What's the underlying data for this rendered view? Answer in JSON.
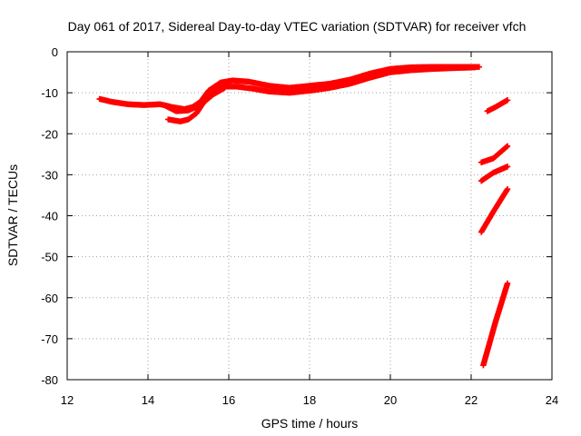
{
  "chart_data": {
    "type": "scatter",
    "title": "Day 061 of 2017, Sidereal Day-to-day VTEC variation (SDTVAR) for receiver vfch",
    "xlabel": "GPS time / hours",
    "ylabel": "SDTVAR / TECUs",
    "xlim": [
      12,
      24
    ],
    "ylim": [
      -80,
      0
    ],
    "x_ticks": [
      "12",
      "14",
      "16",
      "18",
      "20",
      "22",
      "24"
    ],
    "y_ticks": [
      "0",
      "-10",
      "-20",
      "-30",
      "-40",
      "-50",
      "-60",
      "-70",
      "-80"
    ],
    "grid": true,
    "legend": "none",
    "marker": "plus",
    "color": "#ff0000",
    "series": [
      {
        "points": [
          [
            12.8,
            -11.5
          ],
          [
            13.1,
            -12.2
          ],
          [
            13.5,
            -12.8
          ],
          [
            13.9,
            -13.0
          ],
          [
            14.3,
            -12.8
          ],
          [
            14.6,
            -13.5
          ],
          [
            14.9,
            -14.0
          ],
          [
            15.1,
            -13.5
          ],
          [
            15.3,
            -12.2
          ],
          [
            15.5,
            -9.5
          ],
          [
            15.8,
            -7.5
          ],
          [
            16.1,
            -7.0
          ],
          [
            16.5,
            -7.3
          ],
          [
            17.0,
            -8.3
          ],
          [
            17.5,
            -8.8
          ],
          [
            18.0,
            -8.3
          ],
          [
            18.5,
            -7.8
          ],
          [
            19.0,
            -6.8
          ],
          [
            19.5,
            -5.3
          ],
          [
            20.0,
            -4.2
          ],
          [
            20.5,
            -3.8
          ],
          [
            21.0,
            -3.7
          ],
          [
            21.5,
            -3.7
          ],
          [
            22.2,
            -3.7
          ]
        ]
      },
      {
        "points": [
          [
            14.5,
            -16.5
          ],
          [
            14.8,
            -17.0
          ],
          [
            15.0,
            -16.5
          ],
          [
            15.2,
            -15.0
          ],
          [
            15.4,
            -12.0
          ],
          [
            15.6,
            -9.5
          ],
          [
            15.9,
            -8.5
          ],
          [
            16.2,
            -8.5
          ],
          [
            16.6,
            -9.0
          ],
          [
            17.0,
            -9.7
          ],
          [
            17.5,
            -10.0
          ],
          [
            18.0,
            -9.5
          ],
          [
            18.5,
            -8.8
          ],
          [
            19.0,
            -7.8
          ],
          [
            19.5,
            -6.3
          ],
          [
            20.0,
            -5.0
          ],
          [
            20.5,
            -4.5
          ],
          [
            21.0,
            -4.2
          ],
          [
            21.5,
            -4.0
          ],
          [
            22.1,
            -3.8
          ]
        ]
      },
      {
        "points": [
          [
            14.4,
            -13.0
          ],
          [
            14.7,
            -14.5
          ],
          [
            15.0,
            -14.3
          ],
          [
            15.3,
            -13.0
          ],
          [
            15.6,
            -10.5
          ],
          [
            15.9,
            -8.8
          ]
        ]
      },
      {
        "points": [
          [
            22.4,
            -14.5
          ],
          [
            22.6,
            -13.5
          ],
          [
            22.9,
            -11.8
          ]
        ]
      },
      {
        "points": [
          [
            22.25,
            -27.0
          ],
          [
            22.55,
            -26.0
          ],
          [
            22.9,
            -23.0
          ]
        ]
      },
      {
        "points": [
          [
            22.25,
            -31.5
          ],
          [
            22.55,
            -29.5
          ],
          [
            22.9,
            -28.0
          ]
        ]
      },
      {
        "points": [
          [
            22.25,
            -44.0
          ],
          [
            22.55,
            -39.0
          ],
          [
            22.9,
            -33.5
          ]
        ]
      },
      {
        "points": [
          [
            22.3,
            -76.5
          ],
          [
            22.6,
            -66.0
          ],
          [
            22.9,
            -56.5
          ]
        ]
      }
    ]
  }
}
